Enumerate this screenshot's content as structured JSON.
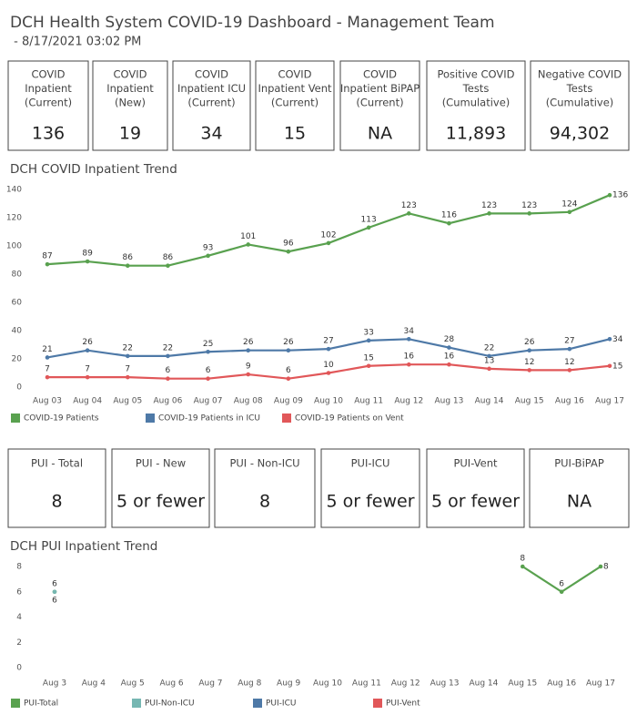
{
  "header": {
    "title": "DCH Health System COVID-19 Dashboard - Management Team",
    "subtitle": " - 8/17/2021 03:02 PM"
  },
  "kpis": [
    {
      "label": [
        "COVID",
        "Inpatient",
        "(Current)"
      ],
      "value": "136"
    },
    {
      "label": [
        "COVID",
        "Inpatient",
        "(New)"
      ],
      "value": "19"
    },
    {
      "label": [
        "COVID",
        "Inpatient ICU",
        "(Current)"
      ],
      "value": "34"
    },
    {
      "label": [
        "COVID",
        "Inpatient Vent",
        "(Current)"
      ],
      "value": "15"
    },
    {
      "label": [
        "COVID",
        "Inpatient BiPAP",
        "(Current)"
      ],
      "value": "NA"
    },
    {
      "label": [
        "Positive COVID",
        "Tests",
        "(Cumulative)"
      ],
      "value": "11,893"
    },
    {
      "label": [
        "Negative COVID",
        "Tests",
        "(Cumulative)"
      ],
      "value": "94,302"
    }
  ],
  "pui_kpis": [
    {
      "label": "PUI - Total",
      "value": "8"
    },
    {
      "label": "PUI - New",
      "value": "5 or fewer"
    },
    {
      "label": "PUI - Non-ICU",
      "value": "8"
    },
    {
      "label": "PUI-ICU",
      "value": "5 or fewer"
    },
    {
      "label": "PUI-Vent",
      "value": "5 or fewer"
    },
    {
      "label": "PUI-BiPAP",
      "value": "NA"
    }
  ],
  "chart_data": [
    {
      "type": "line",
      "title": "DCH COVID Inpatient Trend",
      "categories": [
        "Aug 03",
        "Aug 04",
        "Aug 05",
        "Aug 06",
        "Aug 07",
        "Aug 08",
        "Aug 09",
        "Aug 10",
        "Aug 11",
        "Aug 12",
        "Aug 13",
        "Aug 14",
        "Aug 15",
        "Aug 16",
        "Aug 17"
      ],
      "series": [
        {
          "name": "COVID-19 Patients",
          "color": "#59a14f",
          "values": [
            87,
            89,
            86,
            86,
            93,
            101,
            96,
            102,
            113,
            123,
            116,
            123,
            123,
            124,
            136
          ]
        },
        {
          "name": "COVID-19 Patients in ICU",
          "color": "#4e79a7",
          "values": [
            21,
            26,
            22,
            22,
            25,
            26,
            26,
            27,
            33,
            34,
            28,
            22,
            26,
            27,
            34
          ]
        },
        {
          "name": "COVID-19 Patients on Vent",
          "color": "#e15759",
          "values": [
            7,
            7,
            7,
            6,
            6,
            9,
            6,
            10,
            15,
            16,
            16,
            13,
            12,
            12,
            15
          ]
        }
      ],
      "ylim": [
        0,
        140
      ],
      "yticks": [
        0,
        20,
        40,
        60,
        80,
        100,
        120,
        140
      ],
      "grid": false
    },
    {
      "type": "line",
      "title": "DCH PUI Inpatient Trend",
      "categories": [
        "Aug 3",
        "Aug 4",
        "Aug 5",
        "Aug 6",
        "Aug 7",
        "Aug 8",
        "Aug 9",
        "Aug 10",
        "Aug 11",
        "Aug 12",
        "Aug 13",
        "Aug 14",
        "Aug 15",
        "Aug 16",
        "Aug 17"
      ],
      "series": [
        {
          "name": "PUI-Total",
          "color": "#59a14f",
          "values": [
            6,
            null,
            null,
            null,
            null,
            null,
            null,
            null,
            null,
            null,
            null,
            null,
            8,
            6,
            8
          ]
        },
        {
          "name": "PUI-Non-ICU",
          "color": "#76b7b2",
          "values": [
            6,
            null,
            null,
            null,
            null,
            null,
            null,
            null,
            null,
            null,
            null,
            null,
            null,
            null,
            null
          ]
        },
        {
          "name": "PUI-ICU",
          "color": "#4e79a7",
          "values": [
            null,
            null,
            null,
            null,
            null,
            null,
            null,
            null,
            null,
            null,
            null,
            null,
            null,
            null,
            null
          ]
        },
        {
          "name": "PUI-Vent",
          "color": "#e15759",
          "values": [
            null,
            null,
            null,
            null,
            null,
            null,
            null,
            null,
            null,
            null,
            null,
            null,
            null,
            null,
            null
          ]
        }
      ],
      "ylim": [
        0,
        8
      ],
      "yticks": [
        0,
        2,
        4,
        6,
        8
      ],
      "grid": false
    }
  ]
}
